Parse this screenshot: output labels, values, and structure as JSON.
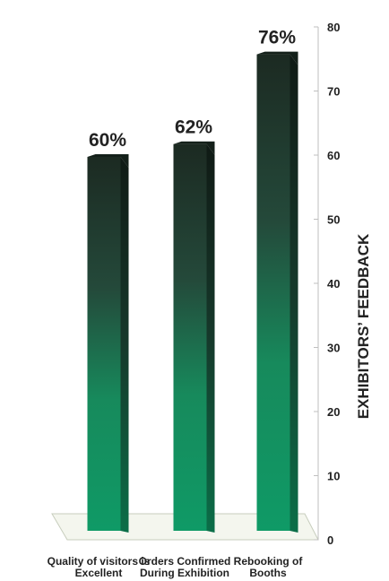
{
  "chart_data": {
    "type": "bar",
    "categories": [
      [
        "Quality of visitors is",
        "Excellent"
      ],
      [
        "Orders Confirmed",
        "During Exhibition"
      ],
      [
        "Rebooking of",
        "Booths"
      ]
    ],
    "values": [
      60,
      62,
      76
    ],
    "value_labels": [
      "60%",
      "62%",
      "76%"
    ],
    "ylabel": "EXHIBITORS’ FEEDBACK",
    "ylim": [
      0,
      80
    ],
    "yticks": [
      0,
      10,
      20,
      30,
      40,
      50,
      60,
      70,
      80
    ],
    "y_axis_side": "right",
    "grid": false,
    "style": "3d-bars",
    "colors": {
      "bar_top": "#1c2a22",
      "bar_bottom": "#0f9a66",
      "text": "#222222"
    }
  }
}
